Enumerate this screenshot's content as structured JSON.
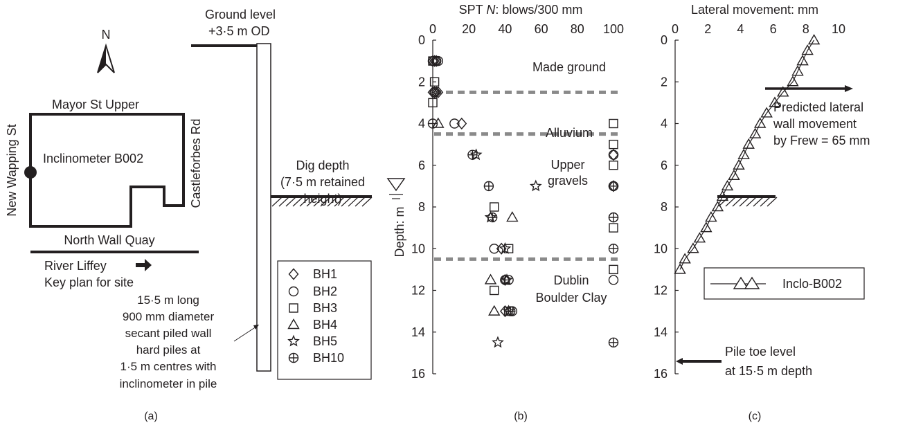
{
  "panel_a": {
    "panel_label": "(a)",
    "north": "N",
    "streets": {
      "top": "Mayor St Upper",
      "right": "Castleforbes Rd",
      "left": "New Wapping St",
      "bottom": "North Wall Quay"
    },
    "inclinometer": "Inclinometer B002",
    "river": "River Liffey",
    "key_plan": "Key plan for site",
    "ground_level_1": "Ground level",
    "ground_level_2": "+3·5 m OD",
    "dig_1": "Dig depth",
    "dig_2": "(7·5 m retained",
    "dig_3": "height)",
    "wall_lines": [
      "15·5 m long",
      "900 mm diameter",
      "secant piled wall",
      "hard piles at",
      "1·5 m centres with",
      "inclinometer in pile"
    ],
    "legend": [
      "BH1",
      "BH2",
      "BH3",
      "BH4",
      "BH5",
      "BH10"
    ]
  },
  "layers": [
    {
      "name": "Made ground"
    },
    {
      "name": "Alluvium"
    },
    {
      "name_1": "Upper",
      "name_2": "gravels"
    },
    {
      "name_1": "Dublin",
      "name_2": "Boulder Clay"
    }
  ],
  "panel_c_text": {
    "predicted_1": "Predicted lateral",
    "predicted_2": "wall movement",
    "predicted_3": "by Frew = 65 mm",
    "pile_toe_1": "Pile toe level",
    "pile_toe_2": "at 15·5 m depth"
  },
  "chart_data": [
    {
      "type": "scatter",
      "panel_label": "(b)",
      "xlabel_prefix": "SPT ",
      "xlabel_italic": "N",
      "xlabel_suffix": ": blows/300 mm",
      "ylabel": "Depth: m",
      "xlim": [
        0,
        100
      ],
      "ylim": [
        0,
        16
      ],
      "xticks": [
        "0",
        "20",
        "40",
        "60",
        "80",
        "100"
      ],
      "yticks": [
        "0",
        "2",
        "4",
        "6",
        "8",
        "10",
        "12",
        "14",
        "16"
      ],
      "layer_boundaries": [
        2.5,
        4.5,
        10.5
      ],
      "series": [
        {
          "name": "BH1",
          "marker": "diamond",
          "points": [
            [
              0,
              1
            ],
            [
              1,
              1
            ],
            [
              2,
              1
            ],
            [
              0,
              2.5
            ],
            [
              1,
              2.5
            ],
            [
              2,
              2.5
            ],
            [
              3,
              2.5
            ],
            [
              16,
              4
            ],
            [
              38,
              10
            ],
            [
              100,
              5.5
            ],
            [
              100,
              7
            ],
            [
              40,
              11.5
            ],
            [
              40,
              13
            ]
          ]
        },
        {
          "name": "BH2",
          "marker": "circle",
          "points": [
            [
              0,
              1
            ],
            [
              2,
              1
            ],
            [
              3,
              1
            ],
            [
              1,
              2.5
            ],
            [
              12,
              4
            ],
            [
              34,
              10
            ],
            [
              100,
              5.5
            ],
            [
              100,
              7
            ],
            [
              100,
              8.5
            ],
            [
              100,
              11.5
            ],
            [
              42,
              11.5
            ],
            [
              44,
              13
            ]
          ]
        },
        {
          "name": "BH3",
          "marker": "square",
          "points": [
            [
              0,
              1
            ],
            [
              1,
              2
            ],
            [
              0,
              3
            ],
            [
              100,
              4
            ],
            [
              100,
              5
            ],
            [
              100,
              6
            ],
            [
              34,
              8
            ],
            [
              100,
              9
            ],
            [
              42,
              10
            ],
            [
              100,
              11
            ],
            [
              34,
              12
            ],
            [
              42,
              13
            ]
          ]
        },
        {
          "name": "BH4",
          "marker": "triangle",
          "points": [
            [
              3,
              4
            ],
            [
              44,
              8.5
            ],
            [
              32,
              11.5
            ],
            [
              34,
              13
            ]
          ]
        },
        {
          "name": "BH5",
          "marker": "star",
          "points": [
            [
              24,
              5.5
            ],
            [
              57,
              7
            ],
            [
              32,
              8.5
            ],
            [
              40,
              10
            ],
            [
              41,
              11.5
            ],
            [
              42,
              13
            ],
            [
              36,
              14.5
            ]
          ]
        },
        {
          "name": "BH10",
          "marker": "circleplus",
          "points": [
            [
              0,
              4
            ],
            [
              22,
              5.5
            ],
            [
              31,
              7
            ],
            [
              100,
              7
            ],
            [
              33,
              8.5
            ],
            [
              100,
              8.5
            ],
            [
              100,
              10
            ],
            [
              40,
              11.5
            ],
            [
              43,
              13
            ],
            [
              100,
              14.5
            ]
          ]
        }
      ]
    },
    {
      "type": "line",
      "panel_label": "(c)",
      "xlabel": "Lateral movement: mm",
      "xlim": [
        0,
        10
      ],
      "ylim": [
        0,
        16
      ],
      "xticks": [
        "0",
        "2",
        "4",
        "6",
        "8",
        "10"
      ],
      "yticks": [
        "0",
        "2",
        "4",
        "6",
        "8",
        "10",
        "12",
        "14",
        "16"
      ],
      "series": [
        {
          "name": "Inclo-B002",
          "marker": "triangle",
          "points": [
            [
              8.5,
              0
            ],
            [
              8.1,
              0.5
            ],
            [
              7.8,
              1
            ],
            [
              7.5,
              1.5
            ],
            [
              7.2,
              2
            ],
            [
              6.6,
              2.5
            ],
            [
              6.1,
              3
            ],
            [
              5.6,
              3.5
            ],
            [
              5.2,
              4
            ],
            [
              4.9,
              4.5
            ],
            [
              4.5,
              5
            ],
            [
              4.2,
              5.5
            ],
            [
              3.9,
              6
            ],
            [
              3.6,
              6.5
            ],
            [
              3.2,
              7
            ],
            [
              2.9,
              7.5
            ],
            [
              2.6,
              8
            ],
            [
              2.2,
              8.5
            ],
            [
              1.9,
              9
            ],
            [
              1.5,
              9.5
            ],
            [
              1.1,
              10
            ],
            [
              0.6,
              10.5
            ],
            [
              0.3,
              11
            ]
          ]
        }
      ]
    }
  ]
}
